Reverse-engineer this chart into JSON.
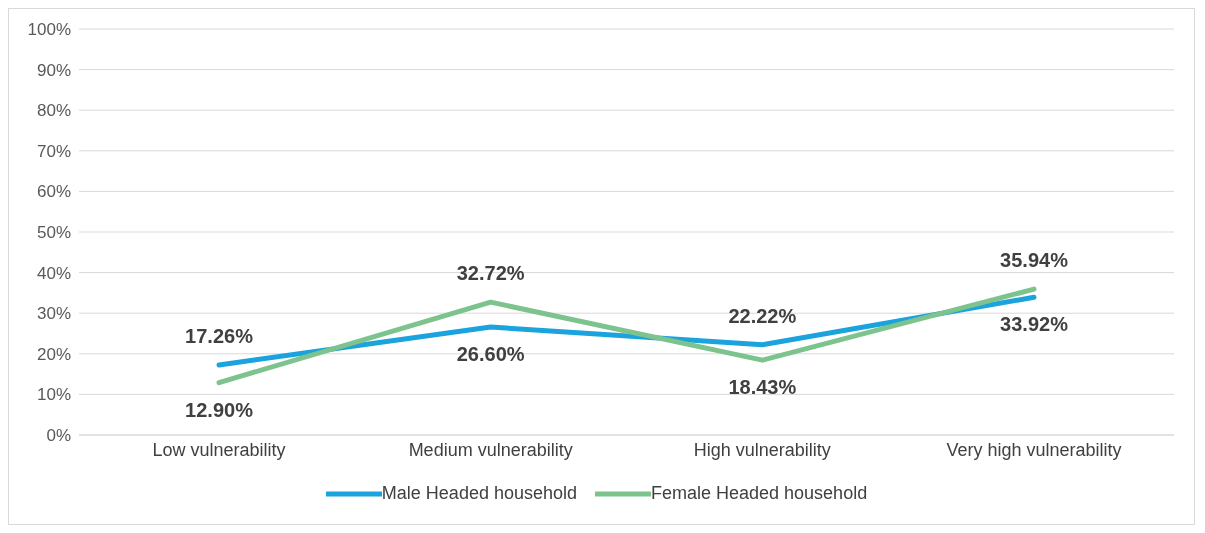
{
  "chart_data": {
    "type": "line",
    "categories": [
      "Low vulnerability",
      "Medium vulnerability",
      "High vulnerability",
      "Very high vulnerability"
    ],
    "series": [
      {
        "name": "Male Headed household",
        "color": "#1aa3dc",
        "values": [
          17.26,
          26.6,
          22.22,
          33.92
        ],
        "value_labels": [
          "17.26%",
          "26.60%",
          "22.22%",
          "33.92%"
        ]
      },
      {
        "name": "Female Headed household",
        "color": "#7cc38e",
        "values": [
          12.9,
          32.72,
          18.43,
          35.94
        ],
        "value_labels": [
          "12.90%",
          "32.72%",
          "18.43%",
          "35.94%"
        ]
      }
    ],
    "ylim": [
      0,
      100
    ],
    "yticks": [
      {
        "value": 0,
        "label": "0%"
      },
      {
        "value": 10,
        "label": "10%"
      },
      {
        "value": 20,
        "label": "20%"
      },
      {
        "value": 30,
        "label": "30%"
      },
      {
        "value": 40,
        "label": "40%"
      },
      {
        "value": 50,
        "label": "50%"
      },
      {
        "value": 60,
        "label": "60%"
      },
      {
        "value": 70,
        "label": "70%"
      },
      {
        "value": 80,
        "label": "80%"
      },
      {
        "value": 90,
        "label": "90%"
      },
      {
        "value": 100,
        "label": "100%"
      }
    ],
    "grid": "y",
    "legend": "bottom",
    "marker": "none",
    "line_style": "solid"
  }
}
